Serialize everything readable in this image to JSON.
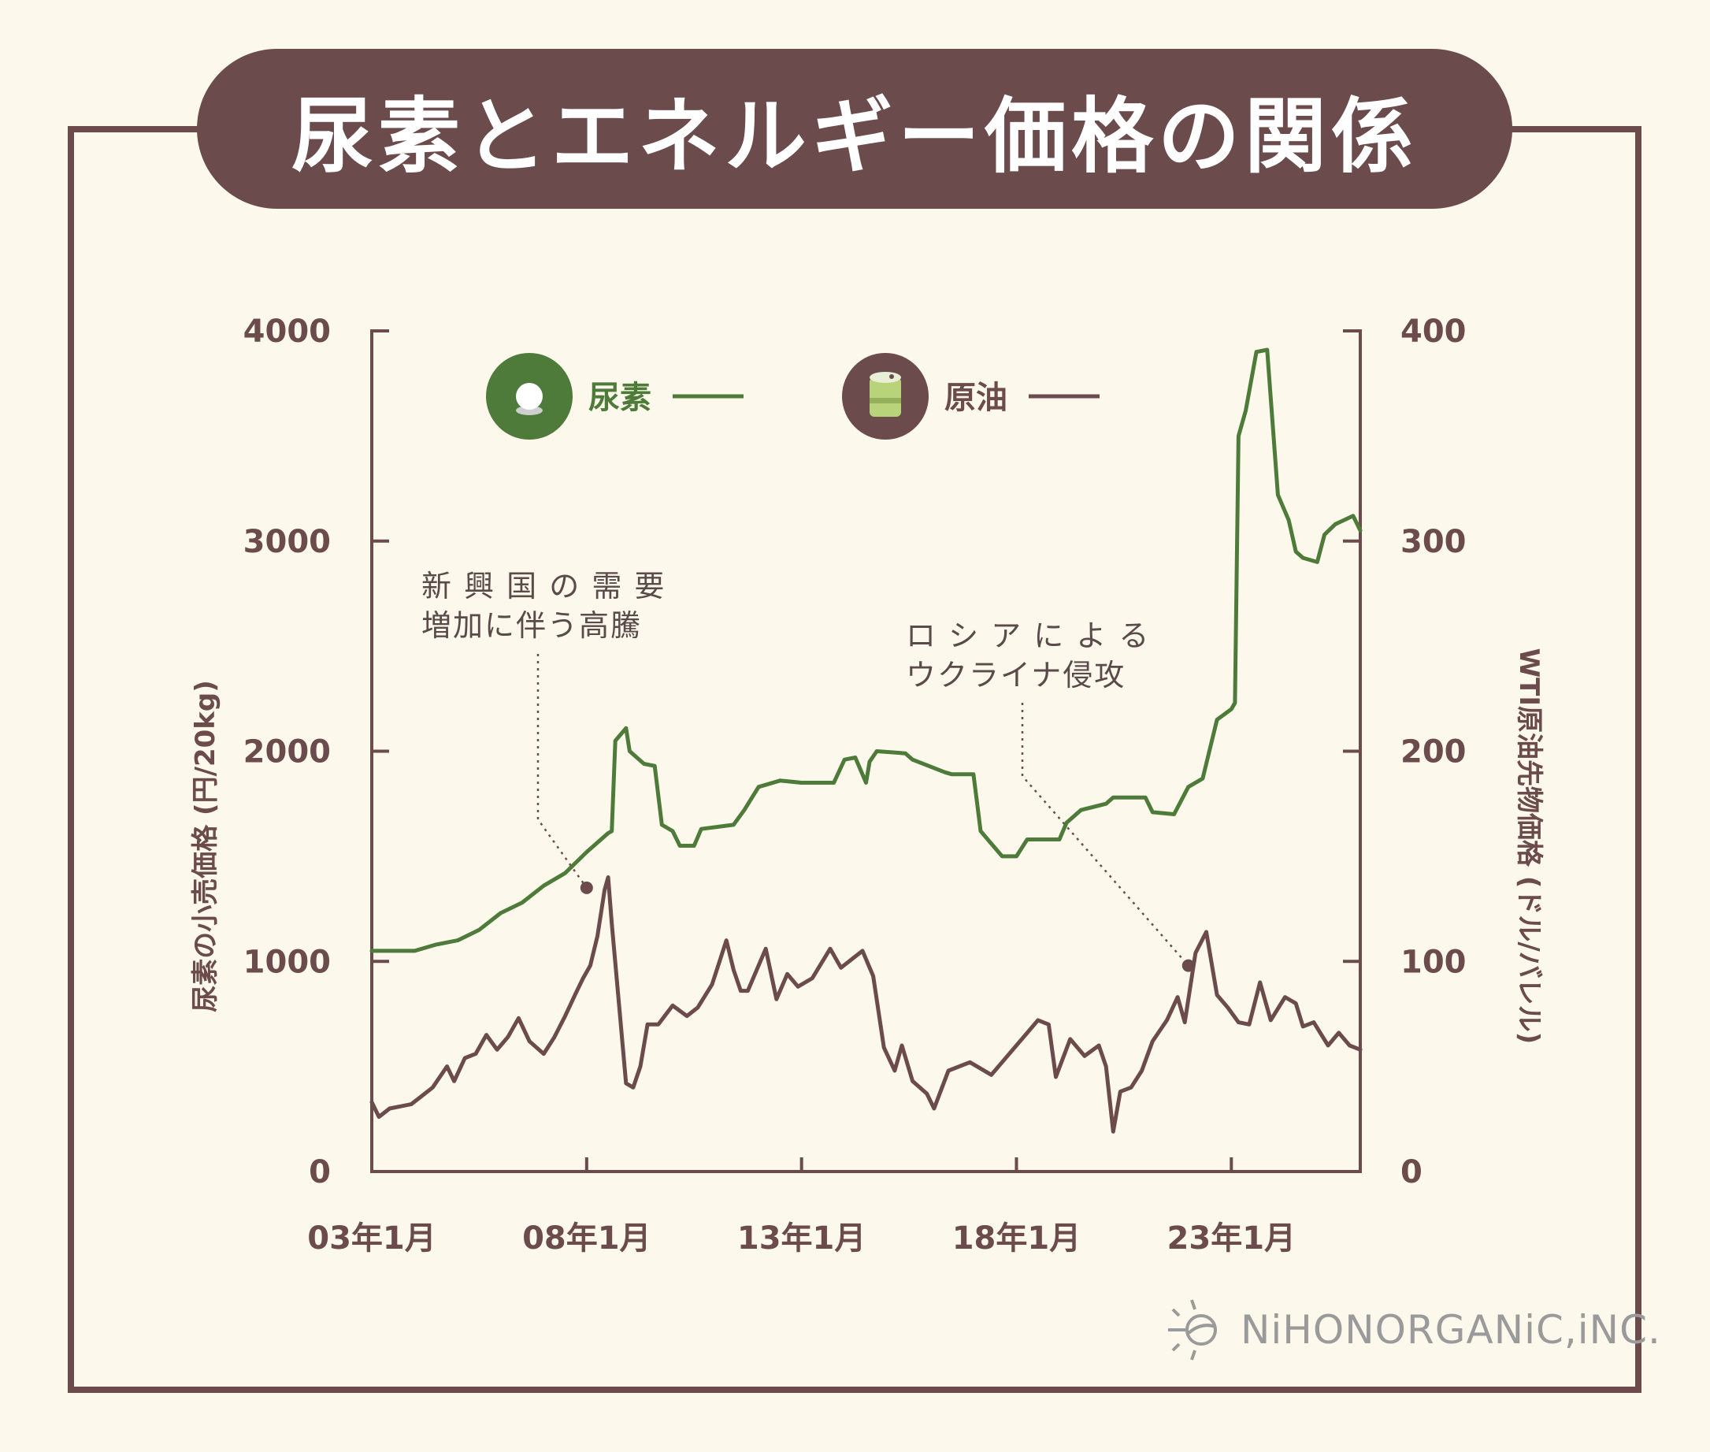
{
  "title": "尿素とエネルギー価格の関係",
  "chart_data": {
    "type": "line",
    "x_tick_labels": [
      "03年1月",
      "08年1月",
      "13年1月",
      "18年1月",
      "23年1月"
    ],
    "x_range": [
      "2003-01",
      "2026-01"
    ],
    "left_axis": {
      "label": "尿素の小売価格 (円/20kg)",
      "ylim": [
        0,
        4000
      ],
      "ticks": [
        "0",
        "1000",
        "2000",
        "3000",
        "4000"
      ]
    },
    "right_axis": {
      "label": "WTI原油先物価格 (ドル/バレル)",
      "ylim": [
        0,
        400
      ],
      "ticks": [
        "0",
        "100",
        "200",
        "300",
        "400"
      ]
    },
    "legend": {
      "placement": "top",
      "entries": [
        "尿素",
        "原油"
      ]
    },
    "series": [
      {
        "name": "尿素",
        "axis": "left",
        "color": "#4e7a3a",
        "icon": "white-pearl-icon",
        "points": [
          [
            "2003-01",
            1050
          ],
          [
            "2004-01",
            1050
          ],
          [
            "2004-07",
            1080
          ],
          [
            "2005-01",
            1100
          ],
          [
            "2005-07",
            1150
          ],
          [
            "2006-01",
            1230
          ],
          [
            "2006-07",
            1280
          ],
          [
            "2007-01",
            1360
          ],
          [
            "2007-07",
            1420
          ],
          [
            "2008-01",
            1520
          ],
          [
            "2008-07",
            1610
          ],
          [
            "2008-08",
            1620
          ],
          [
            "2008-09",
            2050
          ],
          [
            "2008-12",
            2110
          ],
          [
            "2009-01",
            2000
          ],
          [
            "2009-05",
            1940
          ],
          [
            "2009-08",
            1930
          ],
          [
            "2009-10",
            1650
          ],
          [
            "2010-01",
            1620
          ],
          [
            "2010-03",
            1550
          ],
          [
            "2010-07",
            1550
          ],
          [
            "2010-09",
            1630
          ],
          [
            "2011-06",
            1650
          ],
          [
            "2011-09",
            1720
          ],
          [
            "2012-01",
            1830
          ],
          [
            "2012-07",
            1860
          ],
          [
            "2013-01",
            1850
          ],
          [
            "2013-10",
            1850
          ],
          [
            "2014-01",
            1960
          ],
          [
            "2014-04",
            1970
          ],
          [
            "2014-07",
            1850
          ],
          [
            "2014-08",
            1950
          ],
          [
            "2014-10",
            2000
          ],
          [
            "2015-06",
            1990
          ],
          [
            "2015-08",
            1960
          ],
          [
            "2016-05",
            1900
          ],
          [
            "2016-07",
            1890
          ],
          [
            "2017-01",
            1890
          ],
          [
            "2017-03",
            1620
          ],
          [
            "2017-06",
            1560
          ],
          [
            "2017-09",
            1500
          ],
          [
            "2018-01",
            1500
          ],
          [
            "2018-04",
            1580
          ],
          [
            "2019-01",
            1580
          ],
          [
            "2019-03",
            1660
          ],
          [
            "2019-07",
            1720
          ],
          [
            "2020-02",
            1750
          ],
          [
            "2020-04",
            1780
          ],
          [
            "2021-01",
            1780
          ],
          [
            "2021-03",
            1710
          ],
          [
            "2021-09",
            1700
          ],
          [
            "2022-01",
            1830
          ],
          [
            "2022-05",
            1870
          ],
          [
            "2022-09",
            2150
          ],
          [
            "2023-01",
            2200
          ],
          [
            "2023-02",
            2230
          ],
          [
            "2023-03",
            3500
          ],
          [
            "2023-05",
            3620
          ],
          [
            "2023-08",
            3900
          ],
          [
            "2023-11",
            3910
          ],
          [
            "2024-02",
            3220
          ],
          [
            "2024-05",
            3100
          ],
          [
            "2024-07",
            2950
          ],
          [
            "2024-09",
            2920
          ],
          [
            "2025-01",
            2900
          ],
          [
            "2025-03",
            3030
          ],
          [
            "2025-06",
            3080
          ],
          [
            "2025-11",
            3120
          ],
          [
            "2026-01",
            3050
          ]
        ]
      },
      {
        "name": "原油",
        "axis": "right",
        "color": "#6b4b4b",
        "icon": "oil-can-icon",
        "points": [
          [
            "2003-01",
            33
          ],
          [
            "2003-03",
            26
          ],
          [
            "2003-06",
            30
          ],
          [
            "2003-12",
            32
          ],
          [
            "2004-03",
            36
          ],
          [
            "2004-06",
            40
          ],
          [
            "2004-10",
            50
          ],
          [
            "2004-12",
            43
          ],
          [
            "2005-03",
            54
          ],
          [
            "2005-06",
            56
          ],
          [
            "2005-09",
            65
          ],
          [
            "2005-12",
            58
          ],
          [
            "2006-03",
            64
          ],
          [
            "2006-06",
            73
          ],
          [
            "2006-09",
            62
          ],
          [
            "2007-01",
            56
          ],
          [
            "2007-04",
            64
          ],
          [
            "2007-07",
            74
          ],
          [
            "2007-10",
            85
          ],
          [
            "2007-12",
            92
          ],
          [
            "2008-02",
            98
          ],
          [
            "2008-04",
            112
          ],
          [
            "2008-06",
            134
          ],
          [
            "2008-07",
            140
          ],
          [
            "2008-08",
            118
          ],
          [
            "2008-10",
            80
          ],
          [
            "2008-12",
            42
          ],
          [
            "2009-02",
            40
          ],
          [
            "2009-04",
            50
          ],
          [
            "2009-06",
            70
          ],
          [
            "2009-09",
            70
          ],
          [
            "2010-01",
            79
          ],
          [
            "2010-05",
            74
          ],
          [
            "2010-08",
            78
          ],
          [
            "2010-12",
            89
          ],
          [
            "2011-04",
            110
          ],
          [
            "2011-06",
            96
          ],
          [
            "2011-08",
            86
          ],
          [
            "2011-10",
            86
          ],
          [
            "2012-03",
            106
          ],
          [
            "2012-06",
            82
          ],
          [
            "2012-09",
            94
          ],
          [
            "2012-12",
            88
          ],
          [
            "2013-04",
            92
          ],
          [
            "2013-09",
            106
          ],
          [
            "2013-12",
            97
          ],
          [
            "2014-06",
            105
          ],
          [
            "2014-09",
            93
          ],
          [
            "2014-12",
            59
          ],
          [
            "2015-03",
            48
          ],
          [
            "2015-05",
            60
          ],
          [
            "2015-08",
            43
          ],
          [
            "2015-12",
            37
          ],
          [
            "2016-02",
            30
          ],
          [
            "2016-06",
            48
          ],
          [
            "2016-12",
            52
          ],
          [
            "2017-06",
            46
          ],
          [
            "2017-12",
            58
          ],
          [
            "2018-05",
            68
          ],
          [
            "2018-07",
            72
          ],
          [
            "2018-10",
            70
          ],
          [
            "2018-12",
            45
          ],
          [
            "2019-04",
            63
          ],
          [
            "2019-08",
            55
          ],
          [
            "2019-12",
            60
          ],
          [
            "2020-02",
            50
          ],
          [
            "2020-04",
            19
          ],
          [
            "2020-06",
            38
          ],
          [
            "2020-09",
            40
          ],
          [
            "2020-12",
            48
          ],
          [
            "2021-03",
            62
          ],
          [
            "2021-07",
            72
          ],
          [
            "2021-10",
            83
          ],
          [
            "2021-12",
            71
          ],
          [
            "2022-03",
            104
          ],
          [
            "2022-06",
            114
          ],
          [
            "2022-09",
            84
          ],
          [
            "2022-12",
            78
          ],
          [
            "2023-03",
            71
          ],
          [
            "2023-06",
            70
          ],
          [
            "2023-09",
            90
          ],
          [
            "2023-12",
            72
          ],
          [
            "2024-04",
            83
          ],
          [
            "2024-07",
            80
          ],
          [
            "2024-09",
            69
          ],
          [
            "2024-12",
            71
          ],
          [
            "2025-04",
            60
          ],
          [
            "2025-07",
            66
          ],
          [
            "2025-10",
            60
          ],
          [
            "2026-01",
            58
          ]
        ]
      }
    ],
    "annotations": [
      {
        "lines": [
          "新 興 国 の 需 要",
          "増加に伴う高騰"
        ],
        "points_to": [
          "2008-01",
          135
        ]
      },
      {
        "lines": [
          "ロ シ ア に よ る",
          "ウクライナ侵攻"
        ],
        "points_to": [
          "2022-01",
          98
        ]
      }
    ]
  },
  "logo": {
    "text": "NiHONORGANiC,iNC.",
    "icon": "sun-face-logo-icon"
  }
}
